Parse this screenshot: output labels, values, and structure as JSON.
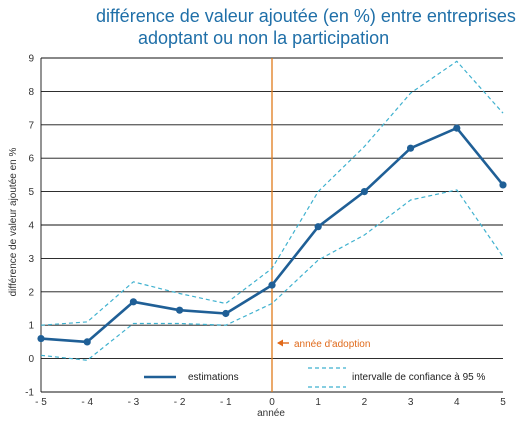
{
  "chart_data": {
    "type": "line",
    "title_line1": "différence de valeur ajoutée (en %) entre entreprises",
    "title_line2": "adoptant ou non la participation",
    "xlabel": "année",
    "ylabel": "différence de valeur ajoutée en %",
    "x": [
      -5,
      -4,
      -3,
      -2,
      -1,
      0,
      1,
      2,
      3,
      4,
      5
    ],
    "xtick_labels": [
      "- 5",
      "- 4",
      "- 3",
      "- 2",
      "- 1",
      "0",
      "1",
      "2",
      "3",
      "4",
      "5"
    ],
    "ylim": [
      -1,
      9
    ],
    "yticks": [
      -1,
      0,
      1,
      2,
      3,
      4,
      5,
      6,
      7,
      8,
      9
    ],
    "series": [
      {
        "name": "estimations",
        "style": "solid",
        "color": "#1f5f96",
        "values": [
          0.6,
          0.5,
          1.7,
          1.45,
          1.35,
          2.2,
          3.95,
          5.0,
          6.3,
          6.9,
          5.2
        ]
      },
      {
        "name": "intervalle de confiance à 95 %",
        "style": "dashed",
        "color": "#3fb1cf",
        "values": [
          1.0,
          1.1,
          2.3,
          1.95,
          1.65,
          2.7,
          5.0,
          6.35,
          7.95,
          8.9,
          7.35
        ]
      },
      {
        "name": "",
        "style": "dashed",
        "color": "#3fb1cf",
        "values": [
          0.1,
          -0.05,
          1.05,
          1.05,
          1.0,
          1.65,
          2.95,
          3.7,
          4.75,
          5.05,
          3.05
        ]
      }
    ],
    "annotation": {
      "text": "année d'adoption",
      "x": 0,
      "color": "#e06a1b"
    },
    "legend_estimations": "estimations",
    "legend_ci": "intervalle de confiance à 95 %",
    "grid": true,
    "gridline_color": "#111111",
    "accent_orange": "#e07b1b"
  }
}
